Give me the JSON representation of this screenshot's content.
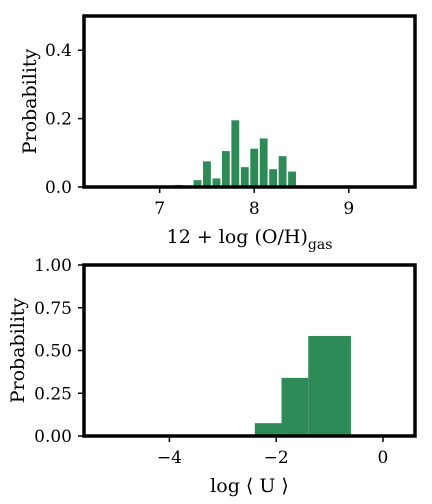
{
  "colors": {
    "bar": "#2e8b57",
    "frame": "#000000",
    "background": "#ffffff"
  },
  "chart_data": [
    {
      "type": "bar",
      "title": "",
      "xlabel_main": "12 + log (O/H)",
      "xlabel_sub": "gas",
      "ylabel": "Probability",
      "xlim": [
        6.2,
        9.7
      ],
      "ylim": [
        0,
        0.5
      ],
      "xticks": [
        7,
        8,
        9
      ],
      "yticks": [
        0.0,
        0.2,
        0.4
      ],
      "ytick_labels": [
        "0.0",
        "0.2",
        "0.4"
      ],
      "bin_width": 0.1,
      "grid": false,
      "bins": [
        {
          "x": 7.1,
          "value": 0.002
        },
        {
          "x": 7.2,
          "value": 0.006
        },
        {
          "x": 7.3,
          "value": 0.003
        },
        {
          "x": 7.4,
          "value": 0.02
        },
        {
          "x": 7.5,
          "value": 0.075
        },
        {
          "x": 7.6,
          "value": 0.025
        },
        {
          "x": 7.7,
          "value": 0.105
        },
        {
          "x": 7.8,
          "value": 0.195
        },
        {
          "x": 7.9,
          "value": 0.058
        },
        {
          "x": 8.0,
          "value": 0.112
        },
        {
          "x": 8.1,
          "value": 0.142
        },
        {
          "x": 8.2,
          "value": 0.052
        },
        {
          "x": 8.3,
          "value": 0.09
        },
        {
          "x": 8.4,
          "value": 0.045
        },
        {
          "x": 8.5,
          "value": 0.003
        }
      ]
    },
    {
      "type": "bar",
      "title": "",
      "xlabel": "log ⟨ U ⟩",
      "ylabel": "Probability",
      "xlim": [
        -5.6,
        0.6
      ],
      "ylim": [
        0,
        1.0
      ],
      "xticks": [
        -4,
        -2,
        0
      ],
      "xtick_labels": [
        "−4",
        "−2",
        "0"
      ],
      "yticks": [
        0.0,
        0.25,
        0.5,
        0.75,
        1.0
      ],
      "ytick_labels": [
        "0.00",
        "0.25",
        "0.50",
        "0.75",
        "1.00"
      ],
      "grid": false,
      "bins": [
        {
          "x0": -2.4,
          "x1": -1.9,
          "value": 0.075
        },
        {
          "x0": -1.9,
          "x1": -1.4,
          "value": 0.34
        },
        {
          "x0": -1.4,
          "x1": -0.6,
          "value": 0.585
        }
      ]
    }
  ]
}
